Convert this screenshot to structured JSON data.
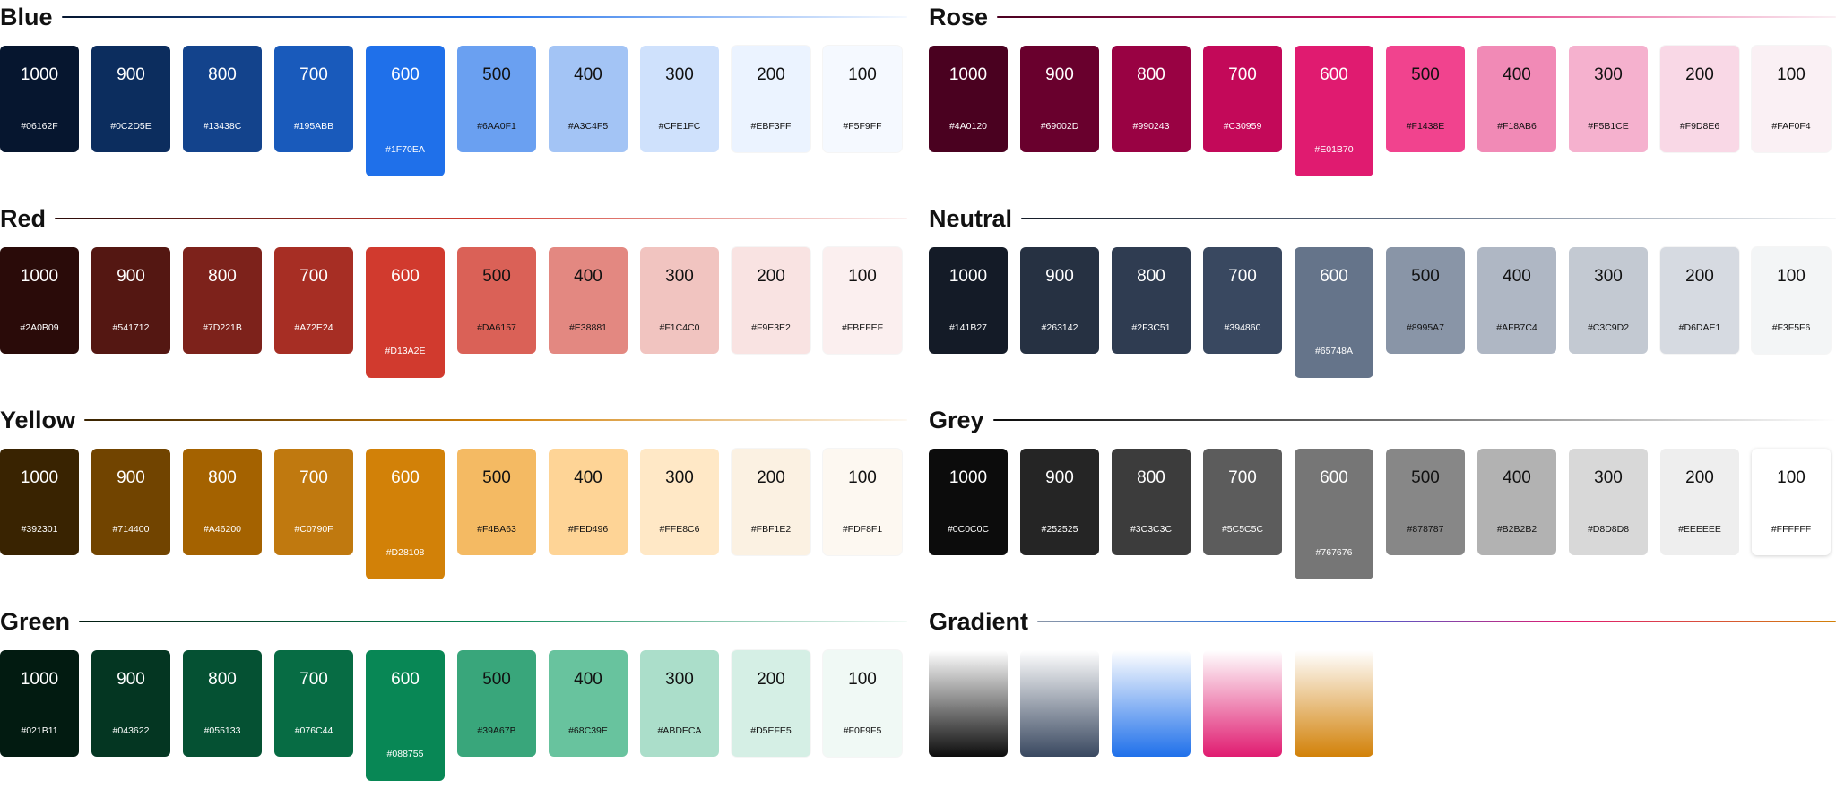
{
  "palettes": [
    {
      "name": "Blue",
      "line": [
        "#06162F",
        "#1F70EA",
        "#F5F9FF"
      ],
      "shades": [
        {
          "label": "1000",
          "hex": "#06162F"
        },
        {
          "label": "900",
          "hex": "#0C2D5E"
        },
        {
          "label": "800",
          "hex": "#13438C"
        },
        {
          "label": "700",
          "hex": "#195ABB"
        },
        {
          "label": "600",
          "hex": "#1F70EA"
        },
        {
          "label": "500",
          "hex": "#6AA0F1"
        },
        {
          "label": "400",
          "hex": "#A3C4F5"
        },
        {
          "label": "300",
          "hex": "#CFE1FC"
        },
        {
          "label": "200",
          "hex": "#EBF3FF"
        },
        {
          "label": "100",
          "hex": "#F5F9FF"
        }
      ]
    },
    {
      "name": "Rose",
      "line": [
        "#4A0120",
        "#E01B70",
        "#FAF0F4"
      ],
      "shades": [
        {
          "label": "1000",
          "hex": "#4A0120"
        },
        {
          "label": "900",
          "hex": "#69002D"
        },
        {
          "label": "800",
          "hex": "#990243"
        },
        {
          "label": "700",
          "hex": "#C30959"
        },
        {
          "label": "600",
          "hex": "#E01B70"
        },
        {
          "label": "500",
          "hex": "#F1438E"
        },
        {
          "label": "400",
          "hex": "#F18AB6"
        },
        {
          "label": "300",
          "hex": "#F5B1CE"
        },
        {
          "label": "200",
          "hex": "#F9D8E6"
        },
        {
          "label": "100",
          "hex": "#FAF0F4"
        }
      ]
    },
    {
      "name": "Red",
      "line": [
        "#2A0B09",
        "#D13A2E",
        "#FBEFEF"
      ],
      "shades": [
        {
          "label": "1000",
          "hex": "#2A0B09"
        },
        {
          "label": "900",
          "hex": "#541712"
        },
        {
          "label": "800",
          "hex": "#7D221B"
        },
        {
          "label": "700",
          "hex": "#A72E24"
        },
        {
          "label": "600",
          "hex": "#D13A2E"
        },
        {
          "label": "500",
          "hex": "#DA6157"
        },
        {
          "label": "400",
          "hex": "#E38881"
        },
        {
          "label": "300",
          "hex": "#F1C4C0"
        },
        {
          "label": "200",
          "hex": "#F9E3E2"
        },
        {
          "label": "100",
          "hex": "#FBEFEF"
        }
      ]
    },
    {
      "name": "Neutral",
      "line": [
        "#141B27",
        "#65748A",
        "#F3F5F6"
      ],
      "shades": [
        {
          "label": "1000",
          "hex": "#141B27"
        },
        {
          "label": "900",
          "hex": "#263142"
        },
        {
          "label": "800",
          "hex": "#2F3C51"
        },
        {
          "label": "700",
          "hex": "#394860"
        },
        {
          "label": "600",
          "hex": "#65748A"
        },
        {
          "label": "500",
          "hex": "#8995A7"
        },
        {
          "label": "400",
          "hex": "#AFB7C4"
        },
        {
          "label": "300",
          "hex": "#C3C9D2"
        },
        {
          "label": "200",
          "hex": "#D6DAE1"
        },
        {
          "label": "100",
          "hex": "#F3F5F6"
        }
      ]
    },
    {
      "name": "Yellow",
      "line": [
        "#392301",
        "#D28108",
        "#FDF8F1"
      ],
      "shades": [
        {
          "label": "1000",
          "hex": "#392301"
        },
        {
          "label": "900",
          "hex": "#714400"
        },
        {
          "label": "800",
          "hex": "#A46200"
        },
        {
          "label": "700",
          "hex": "#C0790F"
        },
        {
          "label": "600",
          "hex": "#D28108"
        },
        {
          "label": "500",
          "hex": "#F4BA63"
        },
        {
          "label": "400",
          "hex": "#FED496"
        },
        {
          "label": "300",
          "hex": "#FFE8C6"
        },
        {
          "label": "200",
          "hex": "#FBF1E2"
        },
        {
          "label": "100",
          "hex": "#FDF8F1"
        }
      ]
    },
    {
      "name": "Grey",
      "line": [
        "#0C0C0C",
        "#767676",
        "#FFFFFF"
      ],
      "shades": [
        {
          "label": "1000",
          "hex": "#0C0C0C"
        },
        {
          "label": "900",
          "hex": "#252525"
        },
        {
          "label": "800",
          "hex": "#3C3C3C"
        },
        {
          "label": "700",
          "hex": "#5C5C5C"
        },
        {
          "label": "600",
          "hex": "#767676"
        },
        {
          "label": "500",
          "hex": "#878787"
        },
        {
          "label": "400",
          "hex": "#B2B2B2"
        },
        {
          "label": "300",
          "hex": "#D8D8D8"
        },
        {
          "label": "200",
          "hex": "#EEEEEE"
        },
        {
          "label": "100",
          "hex": "#FFFFFF"
        }
      ]
    },
    {
      "name": "Green",
      "line": [
        "#021B11",
        "#088755",
        "#F0F9F5"
      ],
      "shades": [
        {
          "label": "1000",
          "hex": "#021B11"
        },
        {
          "label": "900",
          "hex": "#043622"
        },
        {
          "label": "800",
          "hex": "#055133"
        },
        {
          "label": "700",
          "hex": "#076C44"
        },
        {
          "label": "600",
          "hex": "#088755"
        },
        {
          "label": "500",
          "hex": "#39A67B"
        },
        {
          "label": "400",
          "hex": "#68C39E"
        },
        {
          "label": "300",
          "hex": "#ABDECA"
        },
        {
          "label": "200",
          "hex": "#D5EFE5"
        },
        {
          "label": "100",
          "hex": "#F0F9F5"
        }
      ]
    }
  ],
  "gradient": {
    "name": "Gradient",
    "line": [
      "#8995A7",
      "#1F70EA",
      "#E01B70",
      "#D28108"
    ],
    "swatches": [
      [
        "#FFFFFF",
        "#0C0C0C"
      ],
      [
        "#FFFFFF",
        "#394860"
      ],
      [
        "#FFFFFF",
        "#1F70EA"
      ],
      [
        "#FFFFFF",
        "#E01B70"
      ],
      [
        "#FFFFFF",
        "#D28108"
      ]
    ]
  }
}
